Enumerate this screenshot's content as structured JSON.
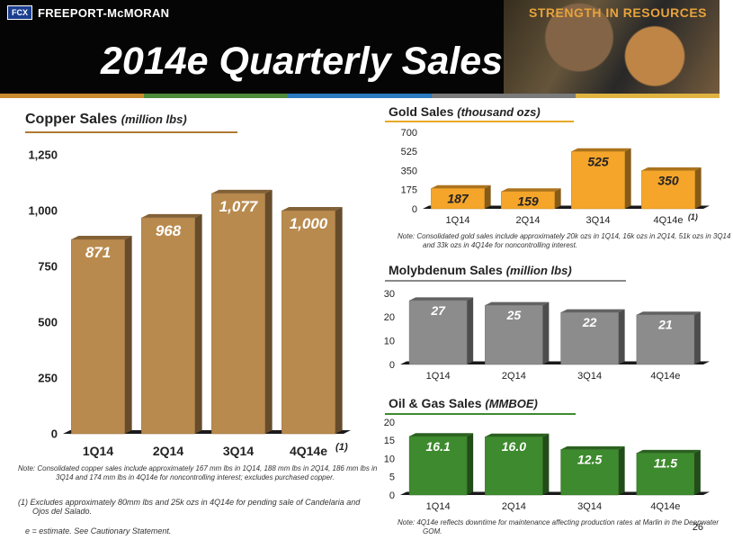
{
  "header": {
    "logo_mark": "FCX",
    "company": "FREEPORT-McMORAN",
    "tagline": "STRENGTH IN RESOURCES",
    "title": "2014e Quarterly Sales",
    "stripe_colors": [
      "#c98a2c",
      "#4d8a3a",
      "#2a7bbf",
      "#7a7a7a",
      "#e0b341"
    ]
  },
  "copper": {
    "title": "Copper Sales",
    "unit": "(million lbs)",
    "note": "Note:  Consolidated copper sales include approximately 167 mm lbs in 1Q14, 188 mm lbs in 2Q14, 186 mm lbs in 3Q14 and 174 mm lbs in 4Q14e for noncontrolling interest; excludes purchased copper.",
    "footnote": "(1)  Excludes approximately 80mm lbs and 25k ozs in 4Q14e for pending sale of Candelaria and Ojos del Salado.",
    "estimate_note": "e = estimate. See Cautionary Statement.",
    "underline_color": "#b07a35"
  },
  "gold": {
    "title": "Gold Sales",
    "unit": "(thousand ozs)",
    "note": "Note: Consolidated gold sales include approximately 20k ozs in 1Q14, 16k ozs in 2Q14, 51k ozs in 3Q14 and 33k ozs in 4Q14e for noncontrolling interest.",
    "underline_color": "#e8a828"
  },
  "moly": {
    "title": "Molybdenum Sales",
    "unit": "(million lbs)",
    "underline_color": "#8a8a8a"
  },
  "oilgas": {
    "title": "Oil & Gas Sales",
    "unit": "(MMBOE)",
    "note": "Note: 4Q14e reflects downtime for maintenance affecting production rates at Marlin in the Deepwater GOM.",
    "underline_color": "#3e8a2e"
  },
  "page_number": "26",
  "chart_data": [
    {
      "id": "copper",
      "type": "bar",
      "categories": [
        "1Q14",
        "2Q14",
        "3Q14",
        "4Q14e"
      ],
      "values": [
        871,
        968,
        1077,
        1000
      ],
      "labels": [
        "871",
        "968",
        "1,077",
        "1,000"
      ],
      "ylim": [
        0,
        1250
      ],
      "yticks": [
        "0",
        "250",
        "500",
        "750",
        "1,000",
        "1,250"
      ],
      "superscript": "(1)",
      "color": "#b98a4e",
      "label_color": "#ffffff"
    },
    {
      "id": "gold",
      "type": "bar",
      "categories": [
        "1Q14",
        "2Q14",
        "3Q14",
        "4Q14e"
      ],
      "values": [
        187,
        159,
        525,
        350
      ],
      "labels": [
        "187",
        "159",
        "525",
        "350"
      ],
      "ylim": [
        0,
        700
      ],
      "yticks": [
        "0",
        "175",
        "350",
        "525",
        "700"
      ],
      "superscript": "(1)",
      "color": "#f4a52a",
      "label_color": "#222222"
    },
    {
      "id": "moly",
      "type": "bar",
      "categories": [
        "1Q14",
        "2Q14",
        "3Q14",
        "4Q14e"
      ],
      "values": [
        27,
        25,
        22,
        21
      ],
      "labels": [
        "27",
        "25",
        "22",
        "21"
      ],
      "ylim": [
        0,
        30
      ],
      "yticks": [
        "0",
        "10",
        "20",
        "30"
      ],
      "superscript": "",
      "color": "#8c8c8c",
      "label_color": "#ffffff"
    },
    {
      "id": "oilgas",
      "type": "bar",
      "categories": [
        "1Q14",
        "2Q14",
        "3Q14",
        "4Q14e"
      ],
      "values": [
        16.1,
        16.0,
        12.5,
        11.5
      ],
      "labels": [
        "16.1",
        "16.0",
        "12.5",
        "11.5"
      ],
      "ylim": [
        0,
        20
      ],
      "yticks": [
        "0",
        "5",
        "10",
        "15",
        "20"
      ],
      "superscript": "",
      "color": "#3e8a2e",
      "label_color": "#ffffff"
    }
  ]
}
